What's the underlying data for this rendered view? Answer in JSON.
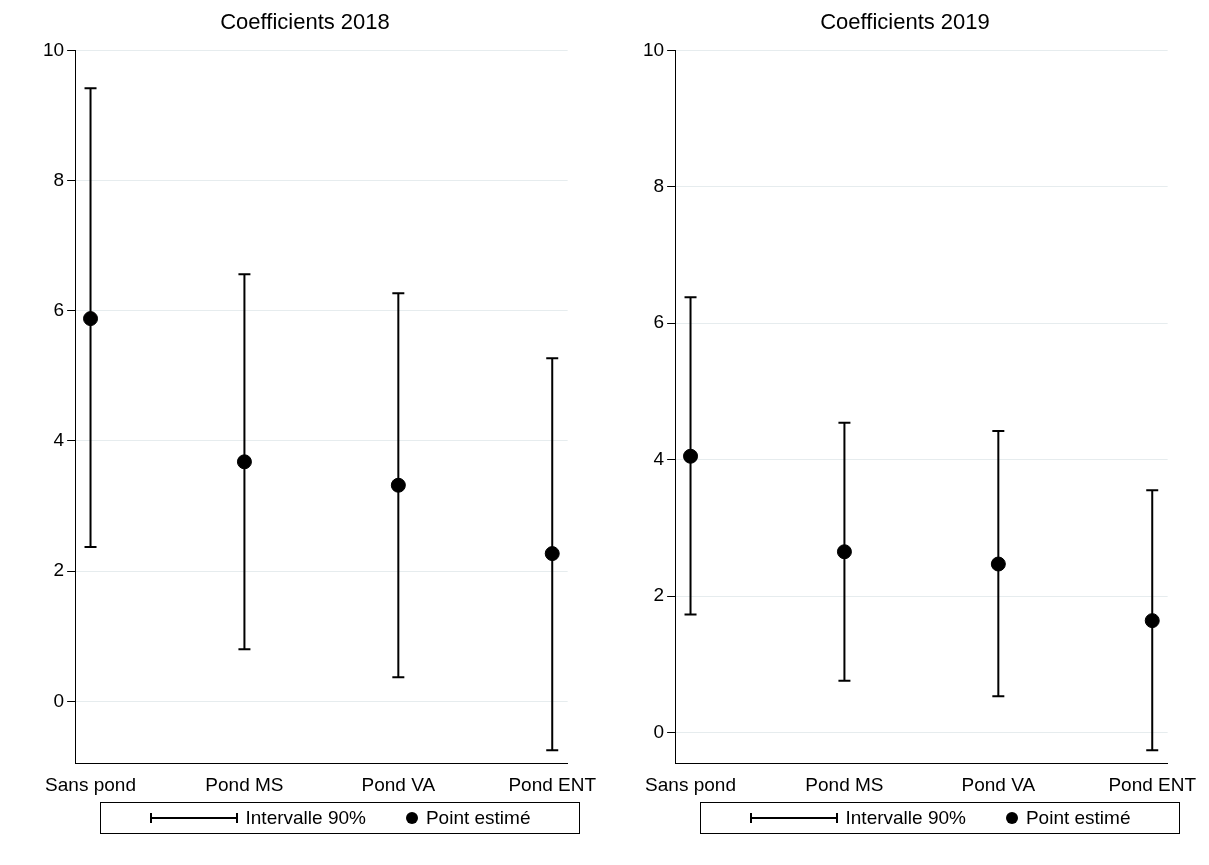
{
  "chart_data": [
    {
      "type": "scatter",
      "title": "Coefficients 2018",
      "categories": [
        "Sans pond",
        "Pond MS",
        "Pond VA",
        "Pond ENT"
      ],
      "ylim": [
        -0.95,
        10
      ],
      "yticks": [
        0,
        2,
        4,
        6,
        8,
        10
      ],
      "grid": "y",
      "legend": "bottom",
      "annotations": [
        "Intervalle 90%"
      ],
      "series": [
        {
          "name": "Point estimé",
          "marker": "circle",
          "color": "#000000",
          "values": [
            5.88,
            3.68,
            3.32,
            2.27
          ],
          "errors": [
            [
              2.37,
              9.42
            ],
            [
              0.8,
              6.56
            ],
            [
              0.37,
              6.27
            ],
            [
              -0.75,
              5.27
            ]
          ]
        }
      ]
    },
    {
      "type": "scatter",
      "title": "Coefficients 2019",
      "categories": [
        "Sans pond",
        "Pond MS",
        "Pond VA",
        "Pond ENT"
      ],
      "ylim": [
        -0.45,
        10
      ],
      "yticks": [
        0,
        2,
        4,
        6,
        8,
        10
      ],
      "grid": "y",
      "legend": "bottom",
      "annotations": [
        "Intervalle 90%"
      ],
      "series": [
        {
          "name": "Point estimé",
          "marker": "circle",
          "color": "#000000",
          "values": [
            4.05,
            2.65,
            2.47,
            1.64
          ],
          "errors": [
            [
              1.73,
              6.38
            ],
            [
              0.76,
              4.54
            ],
            [
              0.53,
              4.42
            ],
            [
              -0.26,
              3.55
            ]
          ]
        }
      ]
    }
  ]
}
